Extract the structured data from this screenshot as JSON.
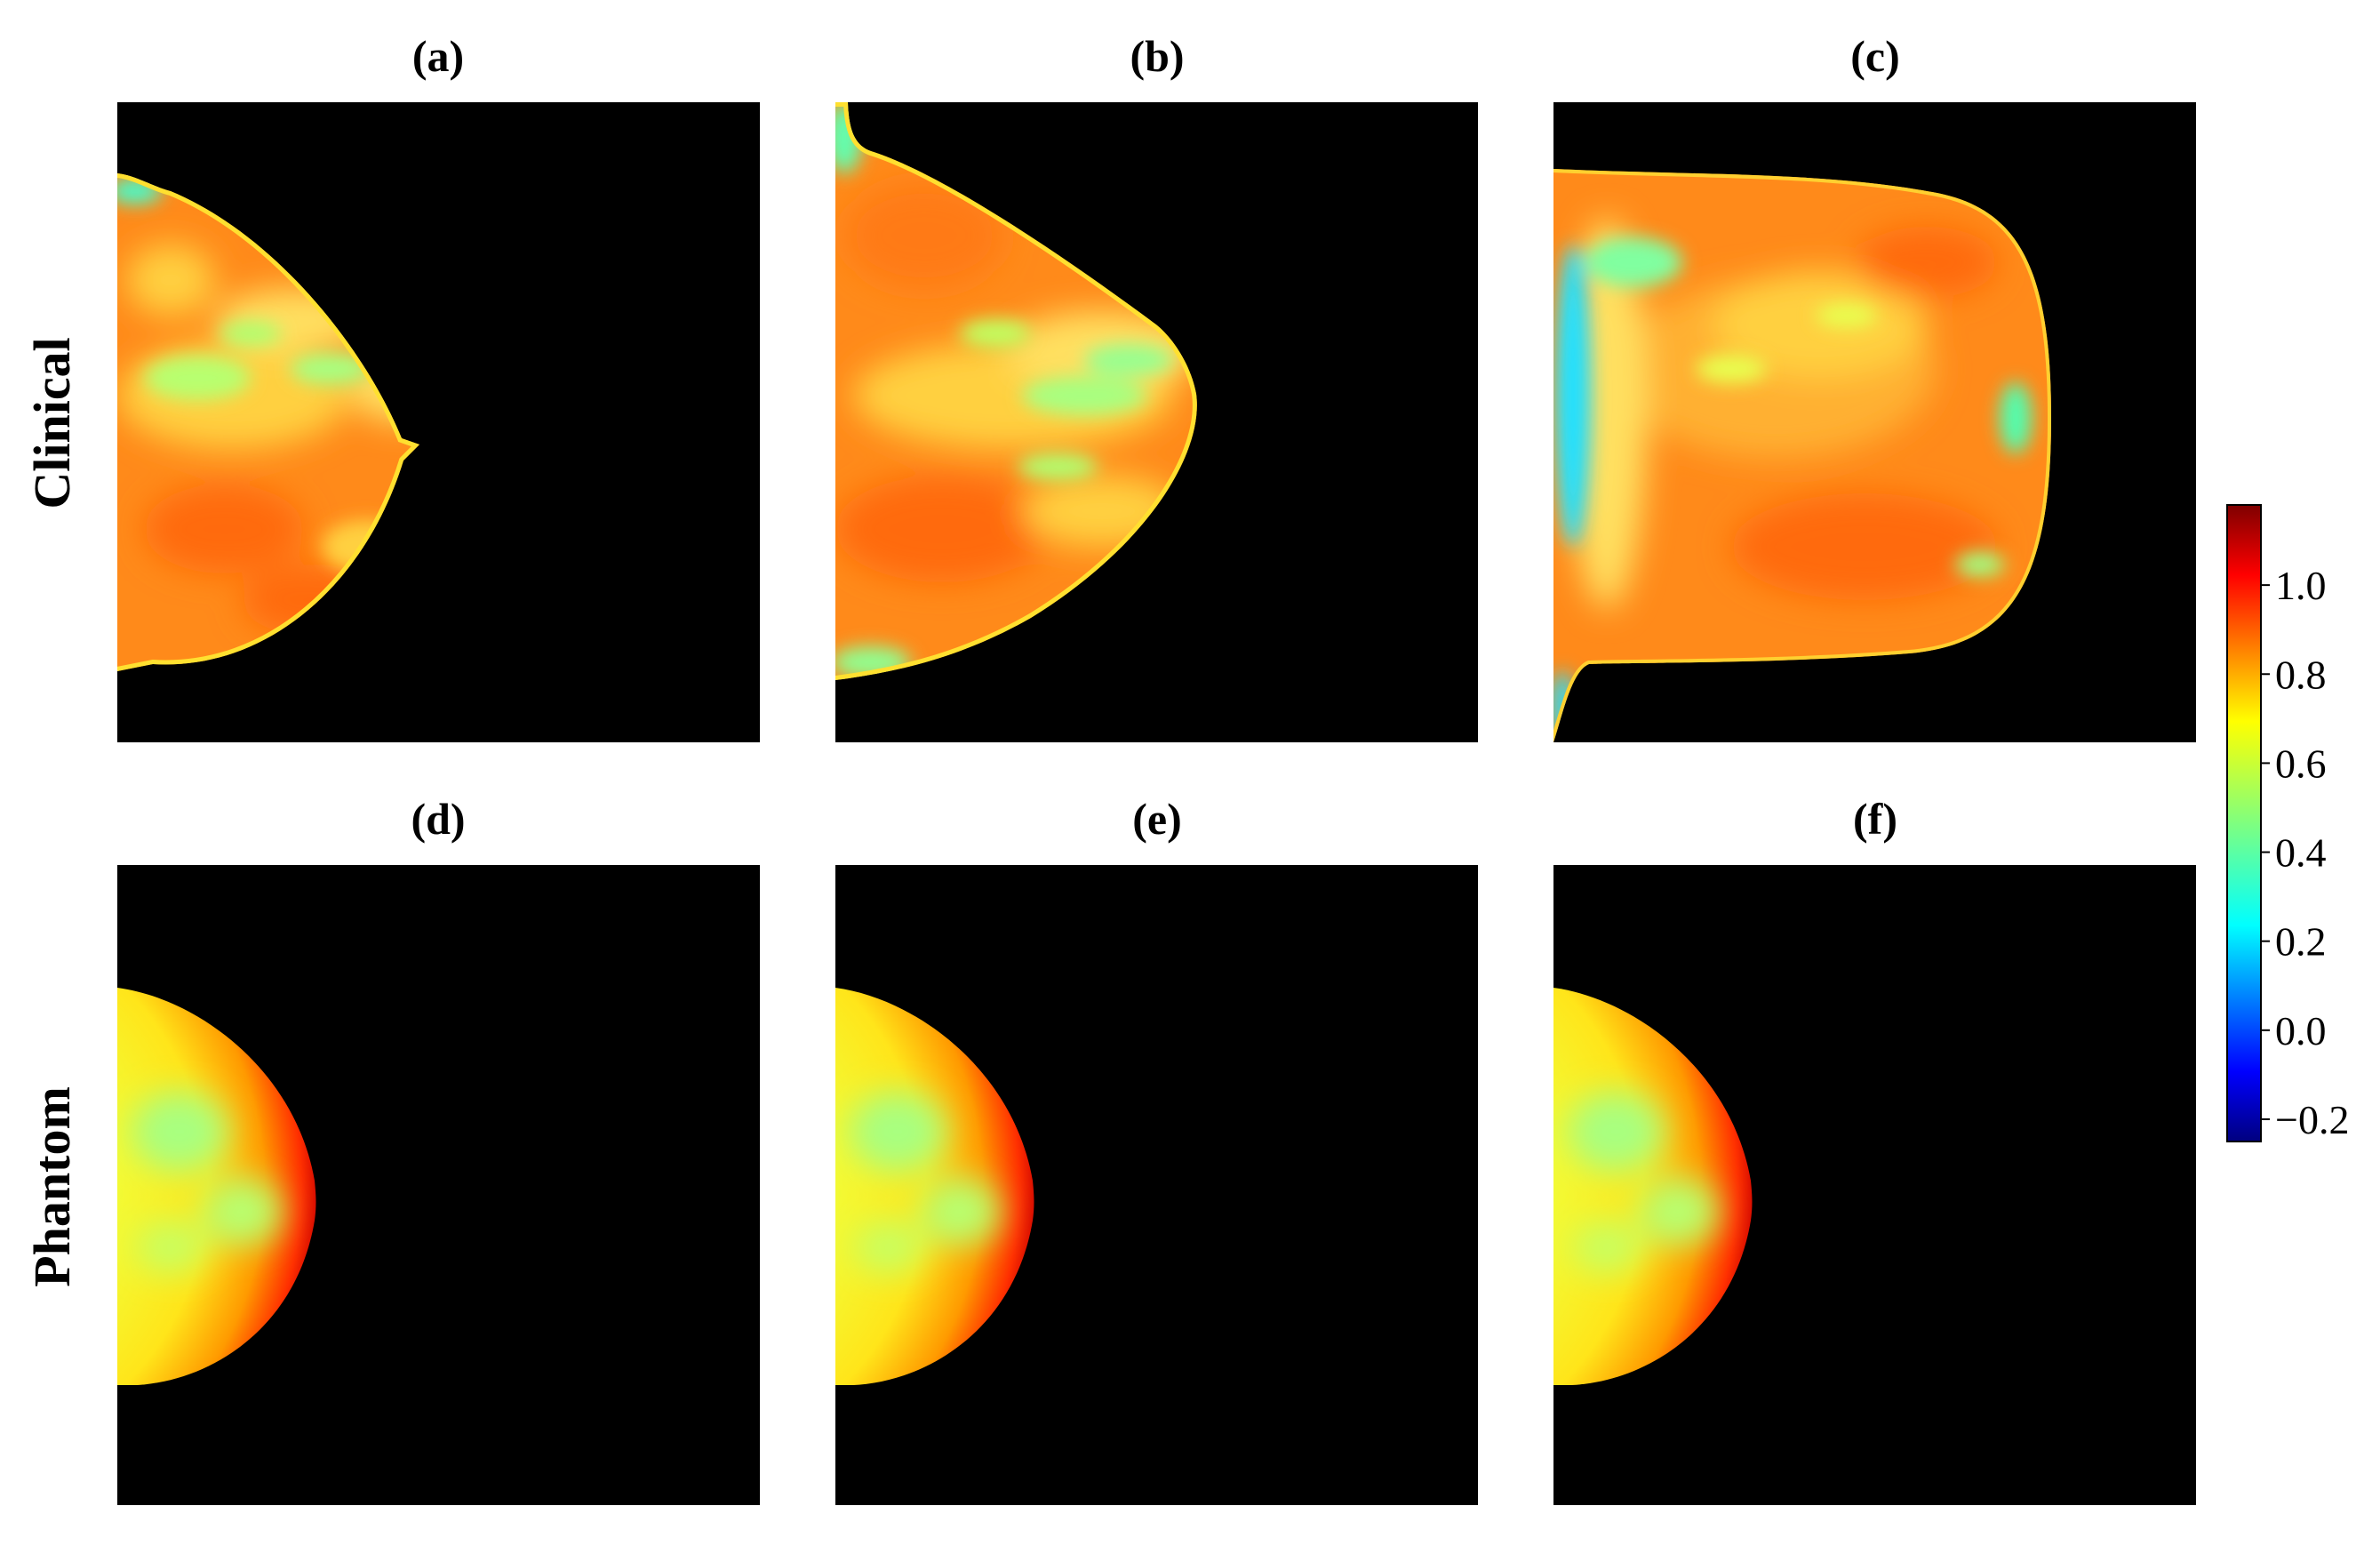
{
  "row_labels": [
    "Clinical",
    "Phantom"
  ],
  "panels": [
    {
      "label": "(a)",
      "kind": "clinical",
      "variant": "a"
    },
    {
      "label": "(b)",
      "kind": "clinical",
      "variant": "b"
    },
    {
      "label": "(c)",
      "kind": "clinical",
      "variant": "c"
    },
    {
      "label": "(d)",
      "kind": "phantom",
      "variant": "d"
    },
    {
      "label": "(e)",
      "kind": "phantom",
      "variant": "e"
    },
    {
      "label": "(f)",
      "kind": "phantom",
      "variant": "f"
    }
  ],
  "colorbar": {
    "colormap": "jet",
    "range": [
      -0.25,
      1.18
    ],
    "ticks": [
      {
        "value": -0.2,
        "label": "−0.2"
      },
      {
        "value": 0.0,
        "label": "0.0"
      },
      {
        "value": 0.2,
        "label": "0.2"
      },
      {
        "value": 0.4,
        "label": "0.4"
      },
      {
        "value": 0.6,
        "label": "0.6"
      },
      {
        "value": 0.8,
        "label": "0.8"
      },
      {
        "value": 1.0,
        "label": "1.0"
      }
    ]
  },
  "colors": {
    "background": "#ffffff",
    "panel_background": "#000000",
    "jet_stops": [
      "#00007f",
      "#0000ff",
      "#007fff",
      "#00ffff",
      "#7fff7f",
      "#ffff00",
      "#ff7f00",
      "#ff0000",
      "#7f0000"
    ]
  }
}
